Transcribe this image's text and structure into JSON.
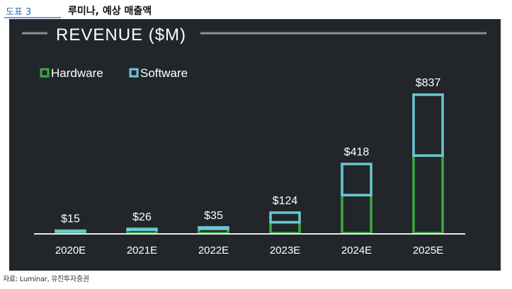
{
  "figure": {
    "label": "도표 3",
    "title": "루미나, 예상 매출액",
    "source": "자료: Luminar, 유진투자증권"
  },
  "colors": {
    "panel_bg": "#22262b",
    "hardware": "#3ea843",
    "software": "#69c7d4",
    "axis": "#e8e8e8",
    "text": "#ffffff"
  },
  "chart_data": {
    "type": "bar",
    "stacked": true,
    "title": "REVENUE ($M)",
    "categories": [
      "2020E",
      "2021E",
      "2022E",
      "2023E",
      "2024E",
      "2025E"
    ],
    "series": [
      {
        "name": "Hardware",
        "values": [
          12,
          20,
          26,
          66,
          230,
          469
        ]
      },
      {
        "name": "Software",
        "values": [
          3,
          6,
          9,
          58,
          188,
          368
        ]
      }
    ],
    "totals": [
      "$15",
      "$26",
      "$35",
      "$124",
      "$418",
      "$837"
    ],
    "legend_position": "top-left",
    "grid": false,
    "ylim": [
      0,
      837
    ]
  }
}
